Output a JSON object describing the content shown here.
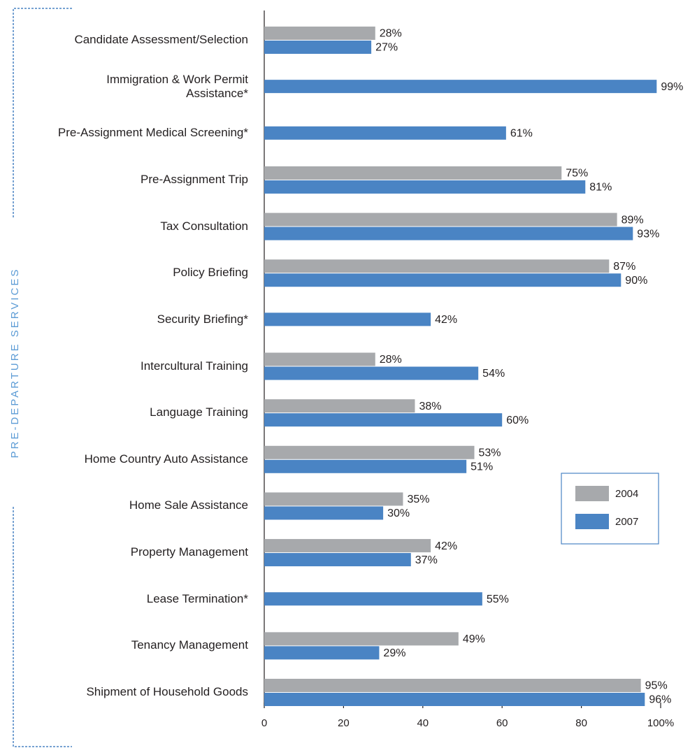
{
  "chart_data": {
    "type": "bar",
    "orientation": "horizontal",
    "side_label": "PRE-DEPARTURE SERVICES",
    "categories": [
      "Candidate Assessment/Selection",
      "Immigration & Work Permit\nAssistance*",
      "Pre-Assignment Medical Screening*",
      "Pre-Assignment Trip",
      "Tax Consultation",
      "Policy Briefing",
      "Security Briefing*",
      "Intercultural Training",
      "Language Training",
      "Home Country Auto Assistance",
      "Home Sale Assistance",
      "Property Management",
      "Lease Termination*",
      "Tenancy Management",
      "Shipment of Household Goods"
    ],
    "series": [
      {
        "name": "2004",
        "color": "#a7a9ac",
        "values": [
          28,
          null,
          null,
          75,
          89,
          87,
          null,
          28,
          38,
          53,
          35,
          42,
          null,
          49,
          95
        ],
        "value_labels": [
          "28%",
          null,
          null,
          "75%",
          "89%",
          "87%",
          null,
          "28%",
          "38%",
          "53%",
          "35%",
          "42%",
          null,
          "49%",
          "95%"
        ]
      },
      {
        "name": "2007",
        "color": "#4a84c4",
        "values": [
          27,
          99,
          61,
          81,
          93,
          90,
          42,
          54,
          60,
          51,
          30,
          37,
          55,
          29,
          96
        ],
        "value_labels": [
          "27%",
          "99%",
          "61%",
          "81%",
          "93%",
          "90%",
          "42%",
          "54%",
          "60%",
          "51%",
          "30%",
          "37%",
          "55%",
          "29%",
          "96%"
        ]
      }
    ],
    "xlim": [
      0,
      100
    ],
    "xticks": [
      0,
      20,
      40,
      60,
      80,
      {
        "value": 100,
        "label": "100%"
      }
    ],
    "legend": "lower right"
  }
}
